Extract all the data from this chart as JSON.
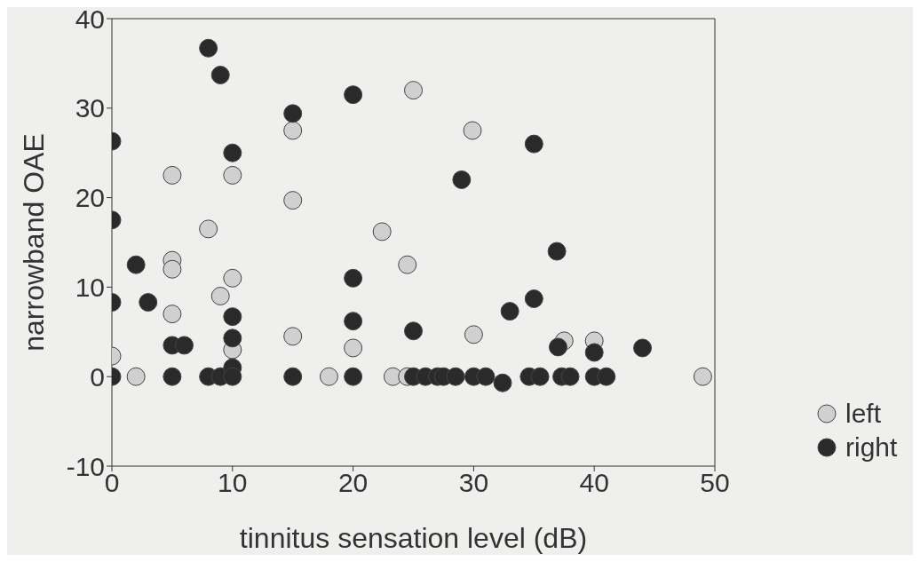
{
  "chart_data": {
    "type": "scatter",
    "xlabel": "tinnitus sensation level (dB)",
    "ylabel": "narrowband OAE",
    "xlim": [
      0,
      50
    ],
    "xticks": [
      0,
      10,
      20,
      30,
      40,
      50
    ],
    "ylim": [
      -10,
      40
    ],
    "yticks": [
      -10,
      0,
      10,
      20,
      30,
      40
    ],
    "grid": false,
    "legend": "bottom right",
    "marker": "circle",
    "series": [
      {
        "name": "left",
        "color": "#d0d0d0",
        "x": [
          0,
          2,
          5,
          5,
          5,
          5,
          8,
          9,
          10,
          10,
          10,
          15,
          15,
          15,
          18,
          20,
          22.4,
          23.3,
          24.5,
          24.5,
          25,
          29.9,
          30,
          37.5,
          40,
          49
        ],
        "values": [
          2.3,
          0,
          22.5,
          13,
          12,
          7,
          16.5,
          9,
          22.5,
          11,
          3,
          27.5,
          19.7,
          4.5,
          0,
          3.2,
          16.2,
          0,
          12.5,
          0,
          32,
          27.5,
          4.7,
          4,
          4,
          0
        ]
      },
      {
        "name": "right",
        "color": "#2a2a2a",
        "x": [
          0,
          0,
          0,
          0,
          2,
          3,
          5,
          6,
          5,
          8,
          9,
          8,
          9,
          10,
          10,
          10,
          10,
          10,
          15,
          15,
          20,
          20,
          20,
          20,
          25,
          25,
          26,
          27,
          27.5,
          28.5,
          30,
          31,
          32.4,
          34.6,
          35.5,
          37.3,
          38,
          29,
          33,
          35,
          35,
          36.9,
          37,
          40,
          40,
          41,
          44
        ],
        "values": [
          26.3,
          17.5,
          8.3,
          0,
          12.5,
          8.3,
          3.5,
          3.5,
          0,
          36.7,
          33.7,
          0,
          0,
          25,
          6.7,
          4.3,
          1,
          0,
          29.4,
          0,
          31.5,
          11,
          6.2,
          0,
          5.1,
          0,
          0,
          0,
          0,
          0,
          0,
          0,
          -0.7,
          0,
          0,
          0,
          0,
          22,
          7.3,
          26,
          8.7,
          14,
          3.3,
          2.7,
          0,
          0,
          3.2
        ]
      }
    ]
  }
}
